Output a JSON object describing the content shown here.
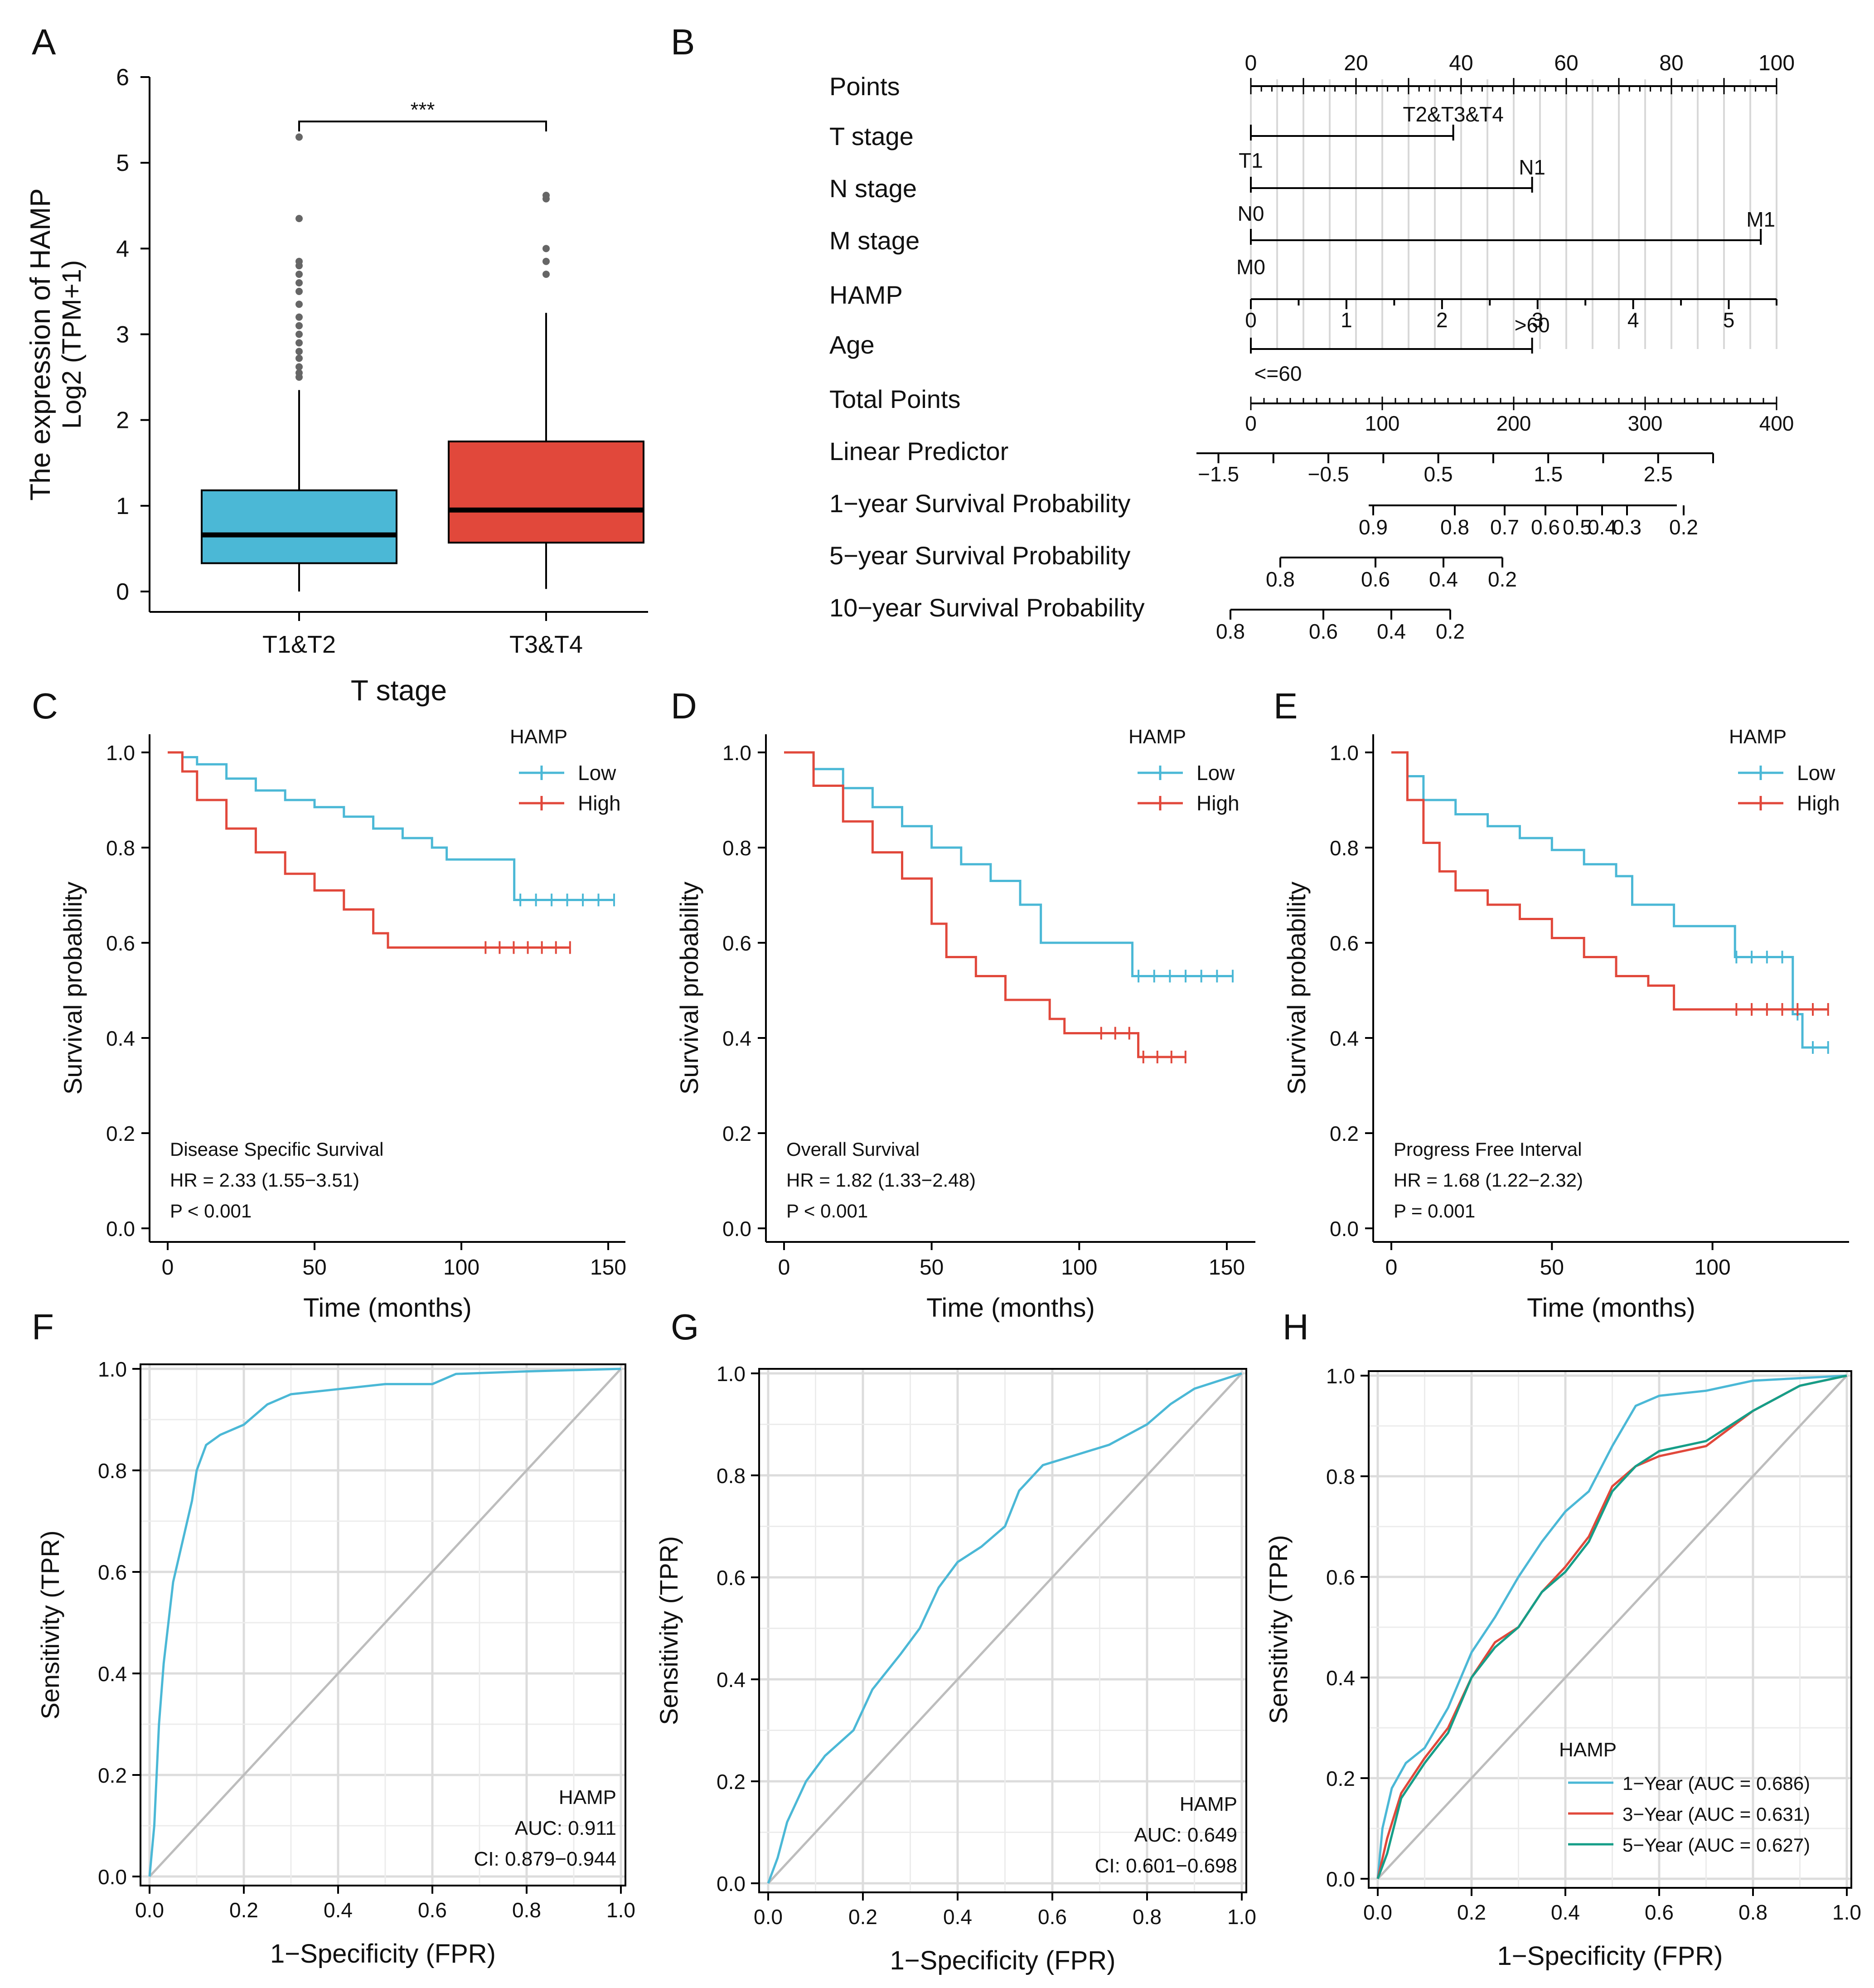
{
  "colors": {
    "low": "#4BB8D6",
    "high": "#E1483B",
    "five": "#169E88",
    "gray": "#BDBDBD",
    "box_t1": "#4BB8D6",
    "box_t3": "#E1483B"
  },
  "chart_data": [
    {
      "panel": "A",
      "type": "box",
      "xlabel": "T stage",
      "ylabel_line1": "The expression of HAMP",
      "ylabel_line2": "Log2 (TPM+1)",
      "categories": [
        "T1&T2",
        "T3&T4"
      ],
      "yticks": [
        "0",
        "1",
        "2",
        "3",
        "4",
        "5",
        "6"
      ],
      "ylim": [
        0,
        6
      ],
      "boxes": [
        {
          "q1": 0.33,
          "median": 0.66,
          "q3": 1.18,
          "whisker_low": 0,
          "whisker_high": 2.35,
          "outliers": [
            2.5,
            2.55,
            2.62,
            2.72,
            2.8,
            2.9,
            3.0,
            3.1,
            3.2,
            3.35,
            3.5,
            3.6,
            3.7,
            3.8,
            3.85,
            4.35,
            5.3
          ]
        },
        {
          "q1": 0.57,
          "median": 0.95,
          "q3": 1.75,
          "whisker_low": 0.03,
          "whisker_high": 3.25,
          "outliers": [
            3.7,
            3.85,
            4.0,
            4.58,
            4.62
          ]
        }
      ],
      "significance": "***"
    },
    {
      "panel": "B",
      "type": "nomogram",
      "rows": [
        {
          "label": "Points",
          "ticks": [
            "0",
            "20",
            "40",
            "60",
            "80",
            "100"
          ]
        },
        {
          "label": "T stage",
          "levels": [
            "T1",
            "T2&T3&T4"
          ]
        },
        {
          "label": "N stage",
          "levels": [
            "N0",
            "N1"
          ]
        },
        {
          "label": "M stage",
          "levels": [
            "M0",
            "M1"
          ]
        },
        {
          "label": "HAMP",
          "ticks": [
            "0",
            "1",
            "2",
            "3",
            "4",
            "5"
          ]
        },
        {
          "label": "Age",
          "levels": [
            "<=60",
            ">60"
          ]
        },
        {
          "label": "Total Points",
          "ticks": [
            "0",
            "100",
            "200",
            "300",
            "400"
          ]
        },
        {
          "label": "Linear Predictor",
          "ticks": [
            "−1.5",
            "−0.5",
            "0.5",
            "1.5",
            "2.5"
          ]
        },
        {
          "label": "1−year Survival Probability",
          "ticks": [
            "0.9",
            "0.8",
            "0.7",
            "0.6",
            "0.5",
            "0.4",
            "0.3",
            "0.2"
          ]
        },
        {
          "label": "5−year Survival Probability",
          "ticks": [
            "0.8",
            "0.6",
            "0.4",
            "0.2"
          ]
        },
        {
          "label": "10−year Survival Probability",
          "ticks": [
            "0.8",
            "0.6",
            "0.4",
            "0.2"
          ]
        }
      ]
    },
    {
      "panel": "C",
      "type": "line",
      "kind": "km",
      "ylabel": "Survival probability",
      "xlabel": "Time (months)",
      "xticks": [
        "0",
        "50",
        "100",
        "150"
      ],
      "yticks": [
        "0.0",
        "0.2",
        "0.4",
        "0.6",
        "0.8",
        "1.0"
      ],
      "legend_title": "HAMP",
      "legend": [
        "Low",
        "High"
      ],
      "annotation": [
        "Disease Specific Survival",
        "HR = 2.33 (1.55−3.51)",
        "P < 0.001"
      ],
      "series": [
        {
          "name": "Low",
          "points": [
            [
              0,
              1
            ],
            [
              5,
              0.99
            ],
            [
              10,
              0.975
            ],
            [
              20,
              0.945
            ],
            [
              30,
              0.92
            ],
            [
              40,
              0.9
            ],
            [
              50,
              0.885
            ],
            [
              60,
              0.865
            ],
            [
              70,
              0.84
            ],
            [
              80,
              0.82
            ],
            [
              90,
              0.8
            ],
            [
              95,
              0.775
            ],
            [
              118,
              0.775
            ],
            [
              118,
              0.69
            ],
            [
              152,
              0.69
            ]
          ]
        },
        {
          "name": "High",
          "points": [
            [
              0,
              1
            ],
            [
              5,
              0.96
            ],
            [
              10,
              0.9
            ],
            [
              20,
              0.84
            ],
            [
              30,
              0.79
            ],
            [
              40,
              0.745
            ],
            [
              50,
              0.71
            ],
            [
              60,
              0.67
            ],
            [
              70,
              0.62
            ],
            [
              75,
              0.59
            ],
            [
              137,
              0.59
            ]
          ]
        }
      ]
    },
    {
      "panel": "D",
      "type": "line",
      "kind": "km",
      "ylabel": "Survival probability",
      "xlabel": "Time (months)",
      "xticks": [
        "0",
        "50",
        "100",
        "150"
      ],
      "yticks": [
        "0.0",
        "0.2",
        "0.4",
        "0.6",
        "0.8",
        "1.0"
      ],
      "legend_title": "HAMP",
      "legend": [
        "Low",
        "High"
      ],
      "annotation": [
        "Overall Survival",
        "HR = 1.82 (1.33−2.48)",
        "P < 0.001"
      ],
      "series": [
        {
          "name": "Low",
          "points": [
            [
              0,
              1
            ],
            [
              10,
              0.965
            ],
            [
              20,
              0.925
            ],
            [
              30,
              0.885
            ],
            [
              40,
              0.845
            ],
            [
              50,
              0.8
            ],
            [
              60,
              0.765
            ],
            [
              70,
              0.73
            ],
            [
              80,
              0.68
            ],
            [
              87,
              0.6
            ],
            [
              118,
              0.6
            ],
            [
              118,
              0.53
            ],
            [
              152,
              0.53
            ]
          ]
        },
        {
          "name": "High",
          "points": [
            [
              0,
              1
            ],
            [
              10,
              0.93
            ],
            [
              20,
              0.855
            ],
            [
              30,
              0.79
            ],
            [
              40,
              0.735
            ],
            [
              50,
              0.64
            ],
            [
              55,
              0.57
            ],
            [
              65,
              0.53
            ],
            [
              75,
              0.48
            ],
            [
              90,
              0.44
            ],
            [
              95,
              0.41
            ],
            [
              120,
              0.41
            ],
            [
              120,
              0.36
            ],
            [
              136,
              0.36
            ]
          ]
        }
      ]
    },
    {
      "panel": "E",
      "type": "line",
      "kind": "km",
      "ylabel": "Survival probability",
      "xlabel": "Time (months)",
      "xticks": [
        "0",
        "50",
        "100"
      ],
      "yticks": [
        "0.0",
        "0.2",
        "0.4",
        "0.6",
        "0.8",
        "1.0"
      ],
      "legend_title": "HAMP",
      "legend": [
        "Low",
        "High"
      ],
      "annotation": [
        "Progress Free Interval",
        "HR = 1.68 (1.22−2.32)",
        "P = 0.001"
      ],
      "series": [
        {
          "name": "Low",
          "points": [
            [
              0,
              1
            ],
            [
              5,
              0.95
            ],
            [
              10,
              0.9
            ],
            [
              20,
              0.87
            ],
            [
              30,
              0.845
            ],
            [
              40,
              0.82
            ],
            [
              50,
              0.795
            ],
            [
              60,
              0.765
            ],
            [
              70,
              0.74
            ],
            [
              75,
              0.68
            ],
            [
              85,
              0.68
            ],
            [
              88,
              0.635
            ],
            [
              107,
              0.635
            ],
            [
              107,
              0.57
            ],
            [
              125,
              0.57
            ],
            [
              125,
              0.45
            ],
            [
              128,
              0.45
            ],
            [
              128,
              0.38
            ],
            [
              136,
              0.38
            ]
          ]
        },
        {
          "name": "High",
          "points": [
            [
              0,
              1
            ],
            [
              5,
              0.9
            ],
            [
              10,
              0.81
            ],
            [
              15,
              0.75
            ],
            [
              20,
              0.71
            ],
            [
              30,
              0.68
            ],
            [
              40,
              0.65
            ],
            [
              50,
              0.61
            ],
            [
              60,
              0.57
            ],
            [
              70,
              0.53
            ],
            [
              80,
              0.51
            ],
            [
              88,
              0.46
            ],
            [
              136,
              0.46
            ]
          ]
        }
      ]
    },
    {
      "panel": "F",
      "type": "line",
      "kind": "roc",
      "ylabel": "Sensitivity (TPR)",
      "xlabel": "1−Specificity (FPR)",
      "xticks": [
        "0.0",
        "0.2",
        "0.4",
        "0.6",
        "0.8",
        "1.0"
      ],
      "yticks": [
        "0.0",
        "0.2",
        "0.4",
        "0.6",
        "0.8",
        "1.0"
      ],
      "annotation": [
        "HAMP",
        "AUC: 0.911",
        "CI: 0.879−0.944"
      ],
      "series": [
        {
          "name": "HAMP",
          "points": [
            [
              0,
              0
            ],
            [
              0.01,
              0.1
            ],
            [
              0.02,
              0.3
            ],
            [
              0.03,
              0.42
            ],
            [
              0.05,
              0.58
            ],
            [
              0.07,
              0.66
            ],
            [
              0.09,
              0.74
            ],
            [
              0.1,
              0.8
            ],
            [
              0.12,
              0.85
            ],
            [
              0.15,
              0.87
            ],
            [
              0.2,
              0.89
            ],
            [
              0.25,
              0.93
            ],
            [
              0.3,
              0.95
            ],
            [
              0.4,
              0.96
            ],
            [
              0.5,
              0.97
            ],
            [
              0.6,
              0.97
            ],
            [
              0.65,
              0.99
            ],
            [
              0.8,
              0.995
            ],
            [
              1,
              1
            ]
          ]
        }
      ]
    },
    {
      "panel": "G",
      "type": "line",
      "kind": "roc",
      "ylabel": "Sensitivity (TPR)",
      "xlabel": "1−Specificity (FPR)",
      "xticks": [
        "0.0",
        "0.2",
        "0.4",
        "0.6",
        "0.8",
        "1.0"
      ],
      "yticks": [
        "0.0",
        "0.2",
        "0.4",
        "0.6",
        "0.8",
        "1.0"
      ],
      "annotation": [
        "HAMP",
        "AUC: 0.649",
        "CI: 0.601−0.698"
      ],
      "series": [
        {
          "name": "HAMP",
          "points": [
            [
              0,
              0
            ],
            [
              0.02,
              0.05
            ],
            [
              0.04,
              0.12
            ],
            [
              0.08,
              0.2
            ],
            [
              0.12,
              0.25
            ],
            [
              0.18,
              0.3
            ],
            [
              0.22,
              0.38
            ],
            [
              0.28,
              0.45
            ],
            [
              0.32,
              0.5
            ],
            [
              0.36,
              0.58
            ],
            [
              0.4,
              0.63
            ],
            [
              0.45,
              0.66
            ],
            [
              0.5,
              0.7
            ],
            [
              0.53,
              0.77
            ],
            [
              0.58,
              0.82
            ],
            [
              0.65,
              0.84
            ],
            [
              0.72,
              0.86
            ],
            [
              0.8,
              0.9
            ],
            [
              0.85,
              0.94
            ],
            [
              0.9,
              0.97
            ],
            [
              1,
              1
            ]
          ]
        }
      ]
    },
    {
      "panel": "H",
      "type": "line",
      "kind": "roc",
      "ylabel": "Sensitivity (TPR)",
      "xlabel": "1−Specificity (FPR)",
      "xticks": [
        "0.0",
        "0.2",
        "0.4",
        "0.6",
        "0.8",
        "1.0"
      ],
      "yticks": [
        "0.0",
        "0.2",
        "0.4",
        "0.6",
        "0.8",
        "1.0"
      ],
      "legend_title": "HAMP",
      "legend": [
        "1−Year (AUC = 0.686)",
        "3−Year (AUC = 0.631)",
        "5−Year (AUC = 0.627)"
      ],
      "series": [
        {
          "name": "1−Year (AUC = 0.686)",
          "points": [
            [
              0,
              0
            ],
            [
              0.01,
              0.1
            ],
            [
              0.03,
              0.18
            ],
            [
              0.06,
              0.23
            ],
            [
              0.1,
              0.26
            ],
            [
              0.15,
              0.34
            ],
            [
              0.2,
              0.45
            ],
            [
              0.25,
              0.52
            ],
            [
              0.3,
              0.6
            ],
            [
              0.35,
              0.67
            ],
            [
              0.4,
              0.73
            ],
            [
              0.45,
              0.77
            ],
            [
              0.5,
              0.86
            ],
            [
              0.55,
              0.94
            ],
            [
              0.6,
              0.96
            ],
            [
              0.7,
              0.97
            ],
            [
              0.8,
              0.99
            ],
            [
              1,
              1
            ]
          ]
        },
        {
          "name": "3−Year (AUC = 0.631)",
          "points": [
            [
              0,
              0
            ],
            [
              0.02,
              0.08
            ],
            [
              0.05,
              0.17
            ],
            [
              0.1,
              0.24
            ],
            [
              0.15,
              0.3
            ],
            [
              0.2,
              0.4
            ],
            [
              0.25,
              0.47
            ],
            [
              0.3,
              0.5
            ],
            [
              0.35,
              0.57
            ],
            [
              0.4,
              0.62
            ],
            [
              0.45,
              0.68
            ],
            [
              0.5,
              0.78
            ],
            [
              0.55,
              0.82
            ],
            [
              0.6,
              0.84
            ],
            [
              0.7,
              0.86
            ],
            [
              0.8,
              0.93
            ],
            [
              0.9,
              0.98
            ],
            [
              1,
              1
            ]
          ]
        },
        {
          "name": "5−Year (AUC = 0.627)",
          "points": [
            [
              0,
              0
            ],
            [
              0.02,
              0.05
            ],
            [
              0.05,
              0.16
            ],
            [
              0.1,
              0.23
            ],
            [
              0.15,
              0.29
            ],
            [
              0.2,
              0.4
            ],
            [
              0.25,
              0.46
            ],
            [
              0.3,
              0.5
            ],
            [
              0.35,
              0.57
            ],
            [
              0.4,
              0.61
            ],
            [
              0.45,
              0.67
            ],
            [
              0.5,
              0.77
            ],
            [
              0.55,
              0.82
            ],
            [
              0.6,
              0.85
            ],
            [
              0.7,
              0.87
            ],
            [
              0.8,
              0.93
            ],
            [
              0.9,
              0.98
            ],
            [
              1,
              1
            ]
          ]
        }
      ]
    }
  ]
}
